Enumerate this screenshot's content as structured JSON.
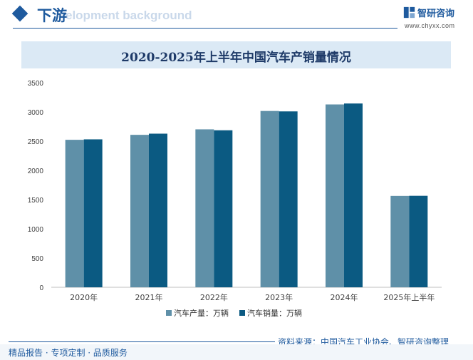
{
  "header": {
    "section_title": "下游",
    "bg_text": "elopment background",
    "logo_name": "智研咨询",
    "logo_url": "www.chyxx.com",
    "logo_icon": "chyxx-logo-icon"
  },
  "colors": {
    "brand": "#1e5a9e",
    "production": "#5f90a8",
    "sales": "#0b5a82",
    "title_band": "#dbe9f5"
  },
  "chart_data": {
    "type": "bar",
    "title": "2020-2025年上半年中国汽车产销量情况",
    "categories": [
      "2020年",
      "2021年",
      "2022年",
      "2023年",
      "2024年",
      "2025年上半年"
    ],
    "series": [
      {
        "name": "汽车产量：万辆",
        "values": [
          2523,
          2608,
          2702,
          3016,
          3128,
          1563
        ]
      },
      {
        "name": "汽车销量：万辆",
        "values": [
          2531,
          2628,
          2686,
          3009,
          3144,
          1565
        ]
      }
    ],
    "yticks": [
      0,
      500,
      1000,
      1500,
      2000,
      2500,
      3000,
      3500
    ],
    "ylim": [
      0,
      3500
    ],
    "xlabel": "",
    "ylabel": "",
    "grid": false,
    "legend": "bottom"
  },
  "footer": {
    "source": "资料来源：中国汽车工业协会、智研咨询整理",
    "tagline": "精品报告 · 专项定制 · 品质服务"
  }
}
